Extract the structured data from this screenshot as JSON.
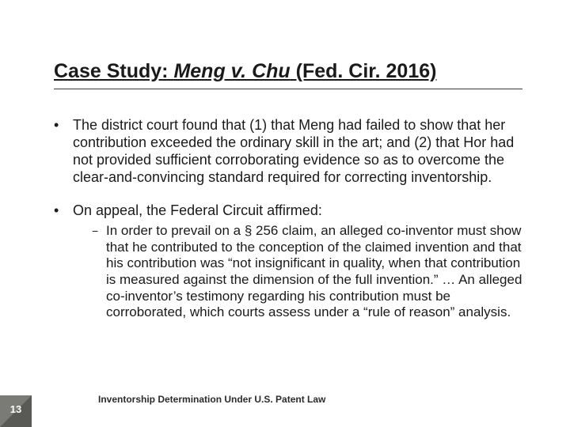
{
  "title": {
    "pre": "Case Study: ",
    "case": "Meng v. Chu",
    "post": " (Fed. Cir. 2016)"
  },
  "bullets": [
    {
      "text": "The district court found that (1) that Meng had failed to show that her contribution exceeded the ordinary skill in the art; and (2) that Hor had not provided sufficient corroborating evidence so as to overcome the clear-and-convincing standard required for correcting inventorship."
    },
    {
      "text": "On appeal, the Federal Circuit affirmed:",
      "sub": [
        "In order to prevail on a § 256 claim, an alleged co-inventor must show that he contributed to the conception of the claimed invention and that his contribution was “not insignificant in quality, when that contribution is measured against the dimension of the full invention.” … An alleged co-inventor’s testimony regarding his contribution must be corroborated, which courts assess under a “rule of reason” analysis."
      ]
    }
  ],
  "footer": "Inventorship Determination Under U.S. Patent Law",
  "page": "13",
  "colors": {
    "square": "#7a7a76",
    "triangle": "#595955",
    "text": "#1a1a1a"
  }
}
